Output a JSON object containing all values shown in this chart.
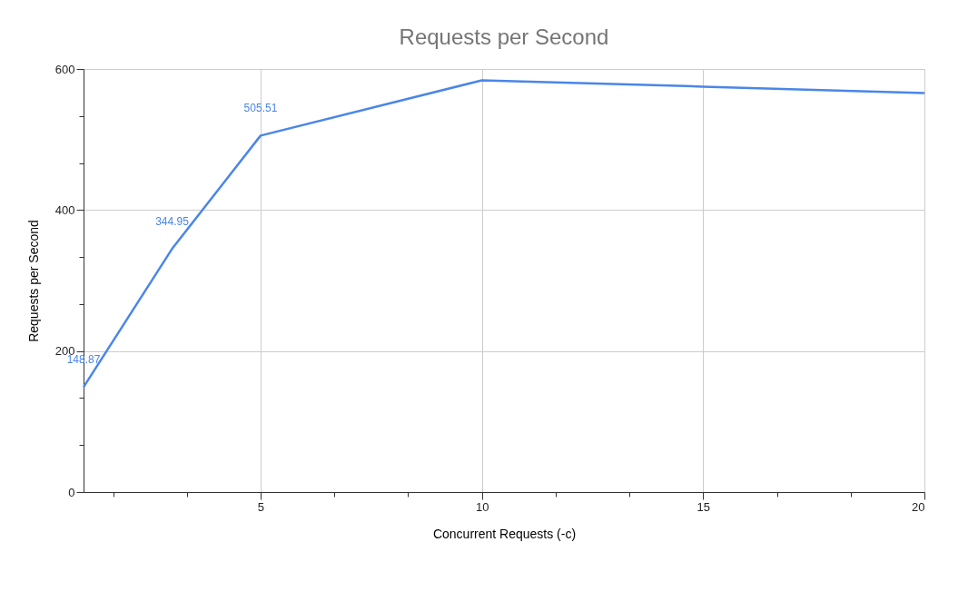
{
  "chart_data": {
    "type": "line",
    "title": "Requests per Second",
    "xlabel": "Concurrent Requests (-c)",
    "ylabel": "Requests per Second",
    "x": [
      1,
      3,
      5,
      10,
      15,
      20
    ],
    "series": [
      {
        "color": "#4a86e8",
        "values": [
          148.87,
          344.95,
          505.51,
          584,
          575,
          566
        ],
        "value_labels": [
          "148.87",
          "344.95",
          "505.51",
          null,
          null,
          null
        ]
      }
    ],
    "xlim": [
      1,
      20
    ],
    "xticks": [
      {
        "value": 1.67,
        "label": null
      },
      {
        "value": 3.33,
        "label": null
      },
      5,
      {
        "value": 6.67,
        "label": null
      },
      {
        "value": 8.33,
        "label": null
      },
      10,
      {
        "value": 11.67,
        "label": null
      },
      {
        "value": 13.33,
        "label": null
      },
      15,
      {
        "value": 16.67,
        "label": null
      },
      {
        "value": 18.33,
        "label": null
      },
      20
    ],
    "ylim": [
      0,
      600
    ],
    "yticks": [
      0,
      {
        "value": 66.67,
        "label": null
      },
      {
        "value": 133.33,
        "label": null
      },
      200,
      {
        "value": 266.67,
        "label": null
      },
      {
        "value": 333.33,
        "label": null
      },
      400,
      {
        "value": 466.67,
        "label": null
      },
      {
        "value": 533.33,
        "label": null
      },
      600
    ],
    "grid": true,
    "marker": "none",
    "line_style": "solid"
  }
}
